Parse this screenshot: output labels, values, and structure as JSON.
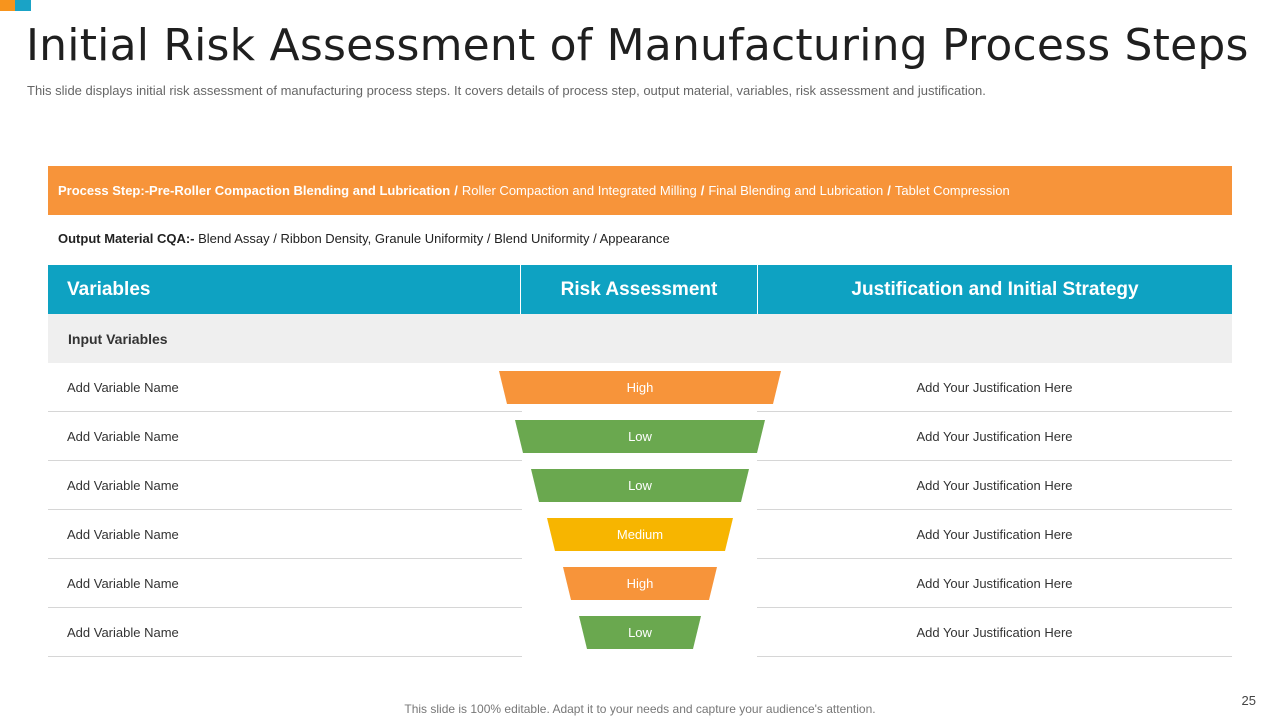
{
  "title": "Initial Risk Assessment of Manufacturing Process Steps",
  "subtitle": "This slide displays initial risk assessment of manufacturing process steps. It covers details of process step, output material, variables, risk assessment and justification.",
  "process_step": {
    "label": "Process Step:- ",
    "steps": [
      "Pre-Roller Compaction Blending and Lubrication",
      "Roller Compaction and Integrated Milling",
      "Final Blending and Lubrication",
      "Tablet Compression"
    ],
    "separator": "/"
  },
  "output_material": {
    "label": "Output Material CQA:- ",
    "value": "Blend Assay / Ribbon Density, Granule Uniformity / Blend Uniformity / Appearance"
  },
  "table": {
    "headers": [
      "Variables",
      "Risk Assessment",
      "Justification and Initial Strategy"
    ],
    "section_label": "Input Variables",
    "rows": [
      {
        "variable": "Add Variable Name",
        "risk": "High",
        "justification": "Add Your Justification Here"
      },
      {
        "variable": "Add Variable Name",
        "risk": "Low",
        "justification": "Add Your Justification Here"
      },
      {
        "variable": "Add Variable Name",
        "risk": "Low",
        "justification": "Add Your Justification Here"
      },
      {
        "variable": "Add Variable Name",
        "risk": "Medium",
        "justification": "Add Your Justification Here"
      },
      {
        "variable": "Add Variable Name",
        "risk": "High",
        "justification": "Add Your Justification Here"
      },
      {
        "variable": "Add Variable Name",
        "risk": "Low",
        "justification": "Add Your Justification Here"
      }
    ]
  },
  "risk_colors": {
    "High": "#f7943a",
    "Low": "#6aa84f",
    "Medium": "#f7b500"
  },
  "footer_note": "This slide is 100% editable. Adapt it to your needs and capture your audience's attention.",
  "page_number": "25"
}
